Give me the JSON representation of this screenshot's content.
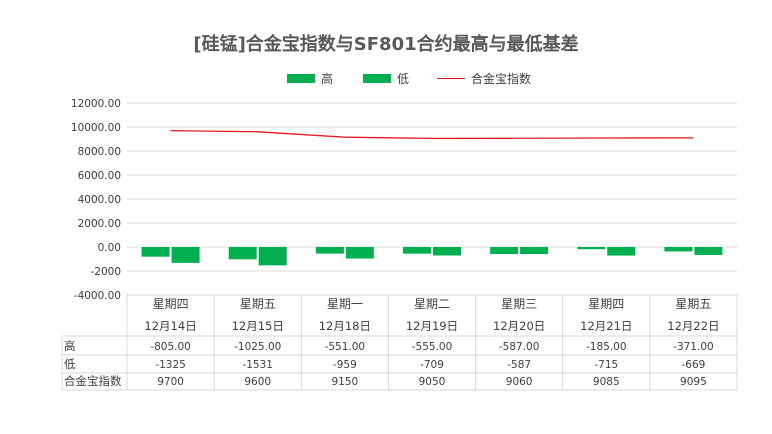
{
  "chart_data": {
    "type": "bar",
    "title": "[硅锰]合金宝指数与SF801合约最高与最低基差",
    "categories": [
      {
        "line1": "星期四",
        "line2": "12月14日"
      },
      {
        "line1": "星期五",
        "line2": "12月15日"
      },
      {
        "line1": "星期一",
        "line2": "12月18日"
      },
      {
        "line1": "星期二",
        "line2": "12月19日"
      },
      {
        "line1": "星期三",
        "line2": "12月20日"
      },
      {
        "line1": "星期四",
        "line2": "12月21日"
      },
      {
        "line1": "星期五",
        "line2": "12月22日"
      }
    ],
    "series": [
      {
        "name": "高",
        "kind": "bar",
        "color": "#00B050",
        "values": [
          -805,
          -1025,
          -551,
          -555,
          -587,
          -185,
          -371
        ],
        "labels": [
          "-805.00",
          "-1025.00",
          "-551.00",
          "-555.00",
          "-587.00",
          "-185.00",
          "-371.00"
        ]
      },
      {
        "name": "低",
        "kind": "bar",
        "color": "#00B050",
        "values": [
          -1325,
          -1531,
          -959,
          -709,
          -587,
          -715,
          -669
        ],
        "labels": [
          "-1325",
          "-1531",
          "-959",
          "-709",
          "-587",
          "-715",
          "-669"
        ]
      },
      {
        "name": "合金宝指数",
        "kind": "line",
        "color": "#E31A1C",
        "values": [
          9700,
          9600,
          9150,
          9050,
          9060,
          9085,
          9095
        ],
        "labels": [
          "9700",
          "9600",
          "9150",
          "9050",
          "9060",
          "9085",
          "9095"
        ]
      }
    ],
    "yticks": [
      "12000.00",
      "10000.00",
      "8000.00",
      "6000.00",
      "4000.00",
      "2000.00",
      "0.00",
      "-2000",
      "-4000.00"
    ],
    "ylim": [
      -4000,
      12000
    ],
    "grid": true,
    "legend_position": "top",
    "data_table": true
  }
}
